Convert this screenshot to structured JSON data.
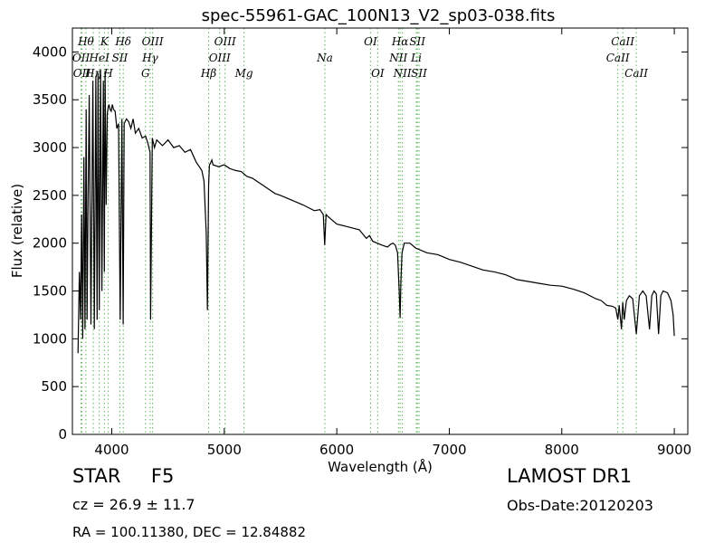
{
  "chart_data": {
    "type": "line",
    "title": "spec-55961-GAC_100N13_V2_sp03-038.fits",
    "xlabel": "Wavelength (Å)",
    "ylabel": "Flux (relative)",
    "xlim": [
      3650,
      9120
    ],
    "ylim": [
      0,
      4250
    ],
    "xticks": [
      4000,
      5000,
      6000,
      7000,
      8000,
      9000
    ],
    "yticks": [
      0,
      500,
      1000,
      1500,
      2000,
      2500,
      3000,
      3500,
      4000
    ],
    "grid": false,
    "line_color": "#000000",
    "marker_color": "#5ab45a",
    "series": [
      {
        "x": [
          3700,
          3712,
          3722,
          3732,
          3742,
          3752,
          3762,
          3772,
          3780,
          3790,
          3800,
          3815,
          3832,
          3845,
          3858,
          3870,
          3878,
          3889,
          3900,
          3912,
          3925,
          3934,
          3940,
          3950,
          3960,
          3968,
          3975,
          3985,
          3995,
          4005,
          4015,
          4030,
          4045,
          4060,
          4075,
          4090,
          4101,
          4110,
          4130,
          4150,
          4170,
          4190,
          4210,
          4240,
          4270,
          4300,
          4320,
          4340,
          4345,
          4360,
          4380,
          4400,
          4450,
          4500,
          4550,
          4600,
          4650,
          4700,
          4750,
          4800,
          4820,
          4840,
          4850,
          4861,
          4868,
          4875,
          4890,
          4900,
          4950,
          5000,
          5050,
          5100,
          5150,
          5200,
          5250,
          5300,
          5350,
          5400,
          5450,
          5500,
          5600,
          5700,
          5800,
          5850,
          5880,
          5893,
          5905,
          5920,
          6000,
          6100,
          6200,
          6263,
          6290,
          6320,
          6400,
          6450,
          6480,
          6500,
          6520,
          6540,
          6555,
          6563,
          6570,
          6580,
          6600,
          6650,
          6700,
          6800,
          6900,
          7000,
          7100,
          7200,
          7300,
          7400,
          7500,
          7600,
          7700,
          7800,
          7900,
          8000,
          8100,
          8200,
          8300,
          8350,
          8400,
          8450,
          8480,
          8498,
          8510,
          8530,
          8542,
          8555,
          8575,
          8600,
          8630,
          8662,
          8690,
          8720,
          8750,
          8780,
          8800,
          8820,
          8840,
          8860,
          8880,
          8900,
          8940,
          8970,
          8990,
          9000
        ],
        "y": [
          850,
          1700,
          1200,
          2300,
          1000,
          2900,
          1100,
          3400,
          1200,
          2500,
          3550,
          1150,
          3700,
          1100,
          3750,
          1200,
          3780,
          1300,
          3820,
          1500,
          3700,
          1700,
          3800,
          2400,
          3350,
          3420,
          3450,
          3400,
          3380,
          3450,
          3400,
          3380,
          3200,
          3250,
          1200,
          3300,
          1150,
          3250,
          3300,
          3270,
          3200,
          3300,
          3150,
          3200,
          3100,
          3120,
          3050,
          2950,
          1200,
          3100,
          3000,
          3080,
          3020,
          3080,
          3000,
          3020,
          2950,
          2980,
          2850,
          2760,
          2650,
          2100,
          1300,
          2600,
          2820,
          2830,
          2870,
          2820,
          2800,
          2820,
          2780,
          2760,
          2750,
          2700,
          2680,
          2640,
          2600,
          2560,
          2520,
          2500,
          2450,
          2400,
          2340,
          2350,
          2300,
          1980,
          2300,
          2280,
          2200,
          2170,
          2140,
          2050,
          2080,
          2020,
          1980,
          1960,
          1990,
          2000,
          1980,
          1900,
          1500,
          1220,
          1600,
          1900,
          2000,
          2000,
          1950,
          1900,
          1880,
          1830,
          1800,
          1760,
          1720,
          1700,
          1670,
          1620,
          1600,
          1580,
          1560,
          1550,
          1520,
          1480,
          1420,
          1400,
          1350,
          1340,
          1320,
          1200,
          1350,
          1100,
          1380,
          1200,
          1400,
          1450,
          1420,
          1050,
          1450,
          1500,
          1450,
          1100,
          1450,
          1500,
          1470,
          1050,
          1450,
          1500,
          1480,
          1400,
          1250,
          1030
        ]
      }
    ],
    "line_markers": [
      {
        "x": 3727,
        "label": "OII",
        "row": 2
      },
      {
        "x": 3734,
        "label": "OII",
        "row": 3
      },
      {
        "x": 3770,
        "label": "Hθ",
        "row": 1
      },
      {
        "x": 3835,
        "label": "Hη",
        "row": 3
      },
      {
        "x": 3889,
        "label": "HeI",
        "row": 2
      },
      {
        "x": 3934,
        "label": "K",
        "row": 1
      },
      {
        "x": 3969,
        "label": "H",
        "row": 3
      },
      {
        "x": 4072,
        "label": "SII",
        "row": 2
      },
      {
        "x": 4102,
        "label": "Hδ",
        "row": 1
      },
      {
        "x": 4300,
        "label": "G",
        "row": 3
      },
      {
        "x": 4341,
        "label": "Hγ",
        "row": 2
      },
      {
        "x": 4363,
        "label": "OIII",
        "row": 1
      },
      {
        "x": 4861,
        "label": "Hβ",
        "row": 3
      },
      {
        "x": 4959,
        "label": "OIII",
        "row": 2
      },
      {
        "x": 5007,
        "label": "OIII",
        "row": 1
      },
      {
        "x": 5175,
        "label": "Mg",
        "row": 3
      },
      {
        "x": 5894,
        "label": "Na",
        "row": 2
      },
      {
        "x": 6300,
        "label": "OI",
        "row": 1
      },
      {
        "x": 6364,
        "label": "OI",
        "row": 3
      },
      {
        "x": 6548,
        "label": "NII",
        "row": 2
      },
      {
        "x": 6563,
        "label": "Hα",
        "row": 1
      },
      {
        "x": 6583,
        "label": "NII",
        "row": 3
      },
      {
        "x": 6707,
        "label": "Li",
        "row": 2
      },
      {
        "x": 6716,
        "label": "SII",
        "row": 1
      },
      {
        "x": 6731,
        "label": "SII",
        "row": 3
      },
      {
        "x": 8498,
        "label": "CaII",
        "row": 2
      },
      {
        "x": 8542,
        "label": "CaII",
        "row": 1
      },
      {
        "x": 8662,
        "label": "CaII",
        "row": 3
      }
    ]
  },
  "info": {
    "object_class": "STAR",
    "subclass": "F5",
    "cz": "cz = 26.9  ± 11.7",
    "coords": "RA = 100.11380, DEC = 12.84882",
    "survey": "LAMOST DR1",
    "obs_date": "Obs-Date:20120203"
  }
}
